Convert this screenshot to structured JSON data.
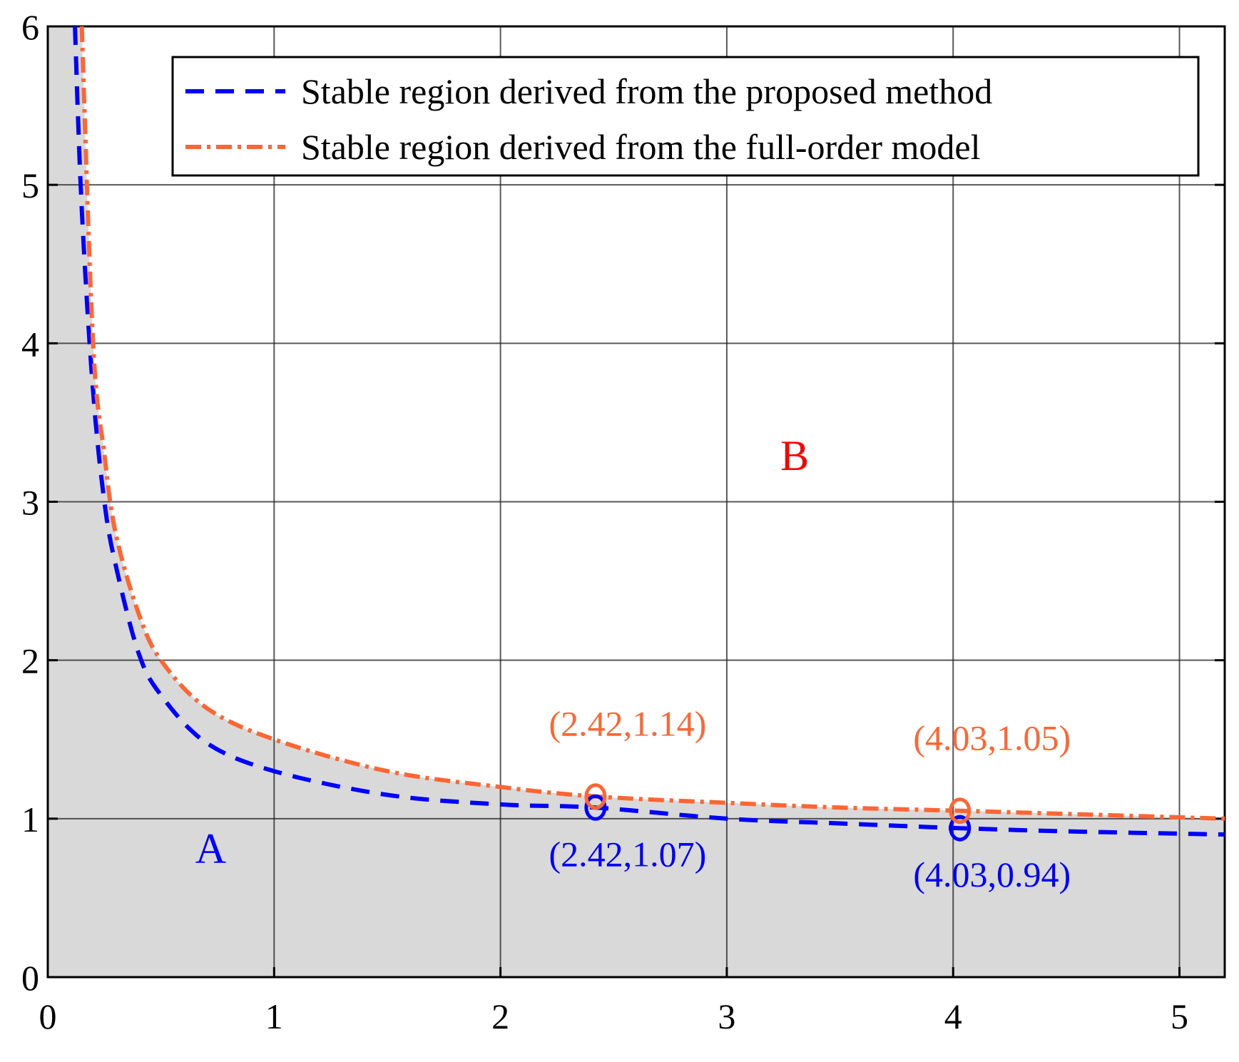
{
  "chart_data": {
    "type": "line",
    "title": "",
    "xlabel": "",
    "ylabel": "",
    "xlim": [
      0,
      5.2
    ],
    "ylim": [
      0,
      6
    ],
    "xticks": [
      0,
      1,
      2,
      3,
      4,
      5
    ],
    "yticks": [
      0,
      1,
      2,
      3,
      4,
      5,
      6
    ],
    "grid": true,
    "legend_position": "top-right",
    "series": [
      {
        "name": "Stable region derived from the proposed method",
        "color": "#0000ff",
        "style": "dashed",
        "x": [
          0.12,
          0.15,
          0.2,
          0.25,
          0.3,
          0.4,
          0.5,
          0.7,
          1.0,
          1.5,
          2.0,
          2.42,
          3.0,
          3.5,
          4.03,
          4.5,
          5.2
        ],
        "y": [
          6.0,
          4.85,
          3.7,
          3.0,
          2.6,
          2.05,
          1.78,
          1.48,
          1.3,
          1.15,
          1.09,
          1.07,
          1.0,
          0.97,
          0.94,
          0.92,
          0.9
        ]
      },
      {
        "name": "Stable region derived from the full-order model",
        "color": "#ff6633",
        "style": "dashdot",
        "x": [
          0.15,
          0.2,
          0.25,
          0.3,
          0.4,
          0.5,
          0.7,
          1.0,
          1.5,
          2.0,
          2.42,
          3.0,
          3.5,
          4.03,
          4.5,
          5.2
        ],
        "y": [
          6.0,
          4.0,
          3.3,
          2.8,
          2.3,
          2.0,
          1.7,
          1.5,
          1.3,
          1.2,
          1.14,
          1.1,
          1.07,
          1.05,
          1.03,
          1.0
        ]
      }
    ],
    "markers": [
      {
        "series": 0,
        "x": 2.42,
        "y": 1.07,
        "label": "(2.42,1.07)",
        "color": "#0000ff"
      },
      {
        "series": 0,
        "x": 4.03,
        "y": 0.94,
        "label": "(4.03,0.94)",
        "color": "#0000ff"
      },
      {
        "series": 1,
        "x": 2.42,
        "y": 1.14,
        "label": "(2.42,1.14)",
        "color": "#ff6633"
      },
      {
        "series": 1,
        "x": 4.03,
        "y": 1.05,
        "label": "(4.03,1.05)",
        "color": "#ff6633"
      }
    ],
    "annotations": [
      {
        "text": "A",
        "x": 0.72,
        "y": 0.72,
        "color": "#0000ff"
      },
      {
        "text": "B",
        "x": 3.3,
        "y": 3.2,
        "color": "#ff0000"
      }
    ],
    "shaded_region": {
      "below_series": 1,
      "color": "#d9d9d9"
    }
  }
}
